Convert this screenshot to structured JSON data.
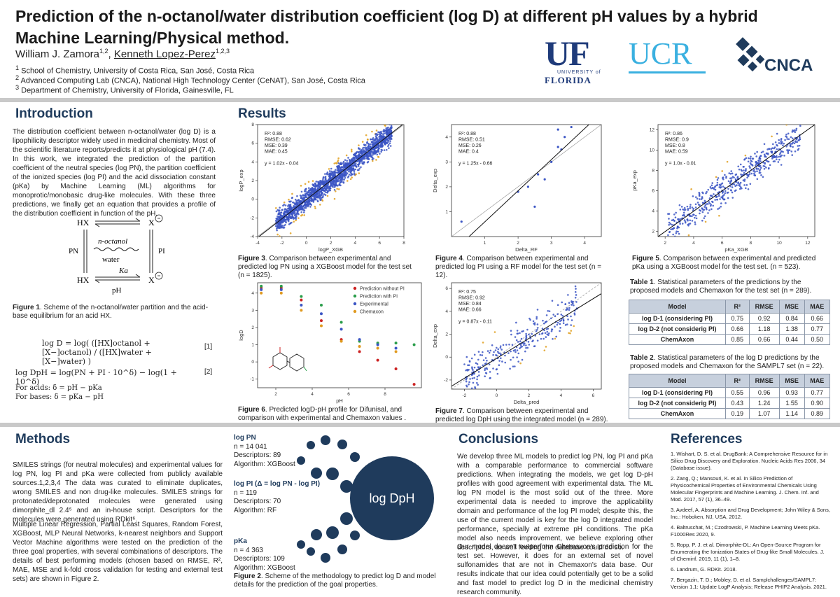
{
  "poster": {
    "title_line1": "Prediction of the n-octanol/water distribution coefficient (log D) at different pH values by a hybrid",
    "title_line2": "Machine Learning/Physical method.",
    "author1": "William J. Zamora",
    "author1_sup": "1,2",
    "author2": "Kenneth Lopez-Perez",
    "author2_sup": "1,2,3",
    "affiliations": [
      "School of Chemistry, University of Costa Rica, San José, Costa Rica",
      "Advanced Computing Lab (CNCA), National High Technology Center (CeNAT), San José, Costa Rica",
      "Department of Chemistry, University of Florida, Gainesville, FL"
    ],
    "affiliation_nums": [
      "1",
      "2",
      "3"
    ]
  },
  "logos": {
    "uf_big": "UF",
    "uf_small1": "UNIVERSITY of",
    "uf_small2": "FLORIDA",
    "ucr": "UCR",
    "cnca": "CNCA",
    "uf_color": "#1f3b7a",
    "ucr_color": "#3ab0e0"
  },
  "introduction": {
    "heading": "Introduction",
    "text": "The distribution coefficient between n-octanol/water (log D) is a lipophilicity descriptor widely used in medicinal chemistry. Most of the scientific literature reports/predicts it at physiological pH (7.4). In this work, we integrated the prediction of the partition coefficient of the neutral species (log PN), the partition coefficient of the ionized species (log PI) and the acid dissociation constant (pKa) by Machine Learning (ML) algorithms for monoprotic/monobasic drug-like molecules. With these three predictions, we finally get an equation that provides a profile of the distribution coefficient in function of the pH.",
    "scheme": {
      "hx_top": "HX",
      "x_top": "X",
      "octanol": "n-octanol",
      "water": "water",
      "pn": "PN",
      "pi": "PI",
      "ka": "Ka",
      "hx_bottom": "HX",
      "x_bottom": "X",
      "ph": "pH"
    },
    "fig1_caption_bold": "Figure 1",
    "fig1_caption": ". Scheme of the n-octanol/water partition and the acid-base equilibrium for an acid HX.",
    "eq1": "log D = log( ([HX]octanol + [X−]octanol) / ([HX]water + [X−]water) )",
    "eq1_num": "[1]",
    "eq2": "log DpH = log(PN + PI · 10^δ) − log(1 + 10^δ)",
    "eq2_num": "[2]",
    "acids": "For acids:   δ = pH − pKa",
    "bases": "For bases:   δ = pKa − pH"
  },
  "results": {
    "heading": "Results",
    "fig3_caption_bold": "Figure 3",
    "fig3_caption": ". Comparison between experimental and predicted log PN using a XGBoost model for the test set (n = 1825).",
    "fig4_caption_bold": "Figure 4",
    "fig4_caption": ". Comparison between experimental and predicted log PI using a RF model for the test set (n = 12).",
    "fig5_caption_bold": "Figure 5",
    "fig5_caption": ". Comparison between experimental and predicted pKa using a XGBoost model for the test set. (n = 523).",
    "fig6_caption_bold": "Figure 6",
    "fig6_caption": ". Predicted logD-pH profile for Difunisal, and comparison with experimental and Chemaxon values .",
    "fig7_caption_bold": "Figure 7",
    "fig7_caption": ". Comparison between experimental and predicted log DpH using the integrated model (n = 289).",
    "table1_caption_bold": "Table 1",
    "table1_caption": ". Statistical parameters of the predictions by the proposed models and Chemaxon for the test set (n = 289).",
    "table2_caption_bold": "Table 2",
    "table2_caption": ". Statistical parameters of the log D predictions by the proposed models and Chemaxon for the SAMPL7 set (n = 22).",
    "table_headers": [
      "Model",
      "R²",
      "RMSE",
      "MSE",
      "MAE"
    ],
    "table1_rows": [
      [
        "log D-1  (considering PI)",
        "0.75",
        "0.92",
        "0.84",
        "0.66"
      ],
      [
        "log D-2  (not considerig PI)",
        "0.66",
        "1.18",
        "1.38",
        "0.77"
      ],
      [
        "ChemAxon",
        "0.85",
        "0.66",
        "0.44",
        "0.50"
      ]
    ],
    "table2_rows": [
      [
        "log D-1  (considering PI)",
        "0.55",
        "0.96",
        "0.93",
        "0.77"
      ],
      [
        "log D-2  (not considerig PI)",
        "0.43",
        "1.24",
        "1.55",
        "0.90"
      ],
      [
        "ChemAxon",
        "0.19",
        "1.07",
        "1.14",
        "0.89"
      ]
    ]
  },
  "methods": {
    "heading": "Methods",
    "para1": "SMILES strings (for neutral molecules) and experimental values for log PN, log PI and pKa were collected from publicly available sources.1,2,3,4 The data was curated to eliminate duplicates, wrong SMILES and non drug-like molecules. SMILES strings for protonated/deprotonated molecules were generated using dimorphite_dl 2.4⁵ and an in-house script. Descriptors for the molecules were generated using RDkit⁶.",
    "para2": "Multiple Linear Regression, Partial Least Squares, Random Forest, XGBoost, MLP Neural Networks, k-nearest neighbors and Support Vector Machine algorithms were tested on the prediction of the three goal properties, with several combinations of descriptors. The details of best performing models (chosen based on RMSE, R², MAE, MSE and k-fold cross validation for testing and external test sets) are shown in Figure 2.",
    "pn_title": "log PN",
    "pn_lines": [
      "n = 14 041",
      "Descriptors: 89",
      "Algorithm: XGBoost"
    ],
    "pi_title": "log PI (Δ = log PN - log PI)",
    "pi_lines": [
      "n = 119",
      "Descriptors: 70",
      "Algorithm: RF"
    ],
    "pka_title": "pKa",
    "pka_lines": [
      "n = 4 363",
      "Descriptors: 109",
      "Algorithm: XGBoost"
    ],
    "circle_label": "log DpH",
    "fig2_caption_bold": "Figure 2",
    "fig2_caption": ". Scheme of the methodology to predict log D and model details for the prediction of the goal properties."
  },
  "conclusions": {
    "heading": "Conclusions",
    "para1": "We develop three ML models to predict log PN, log PI and pKa with a comparable performance to commercial software predictions. When integrating the models, we get log D-pH profiles with good agreement with experimental data. The ML log PN model is the most solid out of the three. More experimental data is needed to improve the applicability domain and performance of the log PI model; despite this, the use of the current model is key for the log D integrated model performance, specially at extreme pH conditions. The pKa model also needs improvement, we believe exploring other descriptors, as well feeding the database could do so.",
    "para2": "Our model doesn't outperform Chemaxon's prediction for the test set. However, it does for an external set of novel sulfonamides that are not in Chemaxon's data base. Our results indicate that our idea could potentially get to be a solid and fast model to predict log D in the medicinal chemistry research community."
  },
  "references": {
    "heading": "References",
    "items": [
      "1.  Wishart, D. S. et al. DrugBank: A Comprehensive Resource for in Silico Drug Discovery and Exploration. Nucleic Acids Res 2006, 34 (Database issue).",
      "2.  Zang, Q.; Mansouri, K. et al. In Silico Prediction of Physicochemical Properties of Environmental Chemicals Using Molecular Fingerprints and Machine Learning. J. Chem. Inf. and Mod. 2017, 57 (1), 36–49.",
      "3.  Avdeef, A. Absorption and Drug Development; John Wiley & Sons, Inc.: Hoboken, NJ, USA, 2012.",
      "4.  Baltruschat, M.; Czodrowski, P. Machine Learning Meets pKa. F1000Res 2020, 9.",
      "5.  Ropp, P. J. et al. Dimorphite-DL: An Open-Source Program for Enumerating the Ionization States of Drug-like Small Molecules. J. of Cheminf. 2019, 11 (1), 1–8.",
      "6.  Landrum, G. RDKit. 2018.",
      "7.  Bergazin, T. D.; Mobley, D. et al. Samplchallenges/SAMPL7: Version 1.1: Update LogP Analysis; Release PHIP2 Analysis. 2021."
    ]
  },
  "chart_data": [
    {
      "type": "scatter",
      "id": "fig3",
      "xlabel": "logP_XGB",
      "ylabel": "logP_exp",
      "xlim": [
        -4,
        8
      ],
      "ylim": [
        -4,
        8
      ],
      "xticks": [
        -4,
        -2,
        0,
        2,
        4,
        6,
        8
      ],
      "yticks": [
        -4,
        -2,
        0,
        2,
        4,
        6,
        8
      ],
      "annotation": [
        "R²: 0.88",
        "RMSE: 0.62",
        "MSE: 0.39",
        "MAE: 0.45",
        "",
        "y = 1.02x - 0.04"
      ],
      "fit": {
        "slope": 1.02,
        "intercept": -0.04
      },
      "n": 1825,
      "spread": 0.6,
      "xrange": [
        -2.5,
        7
      ]
    },
    {
      "type": "scatter",
      "id": "fig4",
      "xlabel": "Delta_RF",
      "ylabel": "Delta_exp",
      "xlim": [
        0,
        4.5
      ],
      "ylim": [
        0,
        4.5
      ],
      "xticks": [
        1,
        2,
        3,
        4
      ],
      "yticks": [
        1,
        2,
        3,
        4
      ],
      "annotation": [
        "R²: 0.88",
        "RMSE: 0.51",
        "MSE: 0.26",
        "MAE: 0.4",
        "",
        "y = 1.25x - 0.66"
      ],
      "fit": {
        "slope": 1.25,
        "intercept": -0.66
      },
      "points": [
        [
          0.3,
          0.6
        ],
        [
          2.0,
          1.8
        ],
        [
          2.3,
          2.0
        ],
        [
          2.6,
          2.5
        ],
        [
          2.5,
          1.2
        ],
        [
          3.0,
          3.0
        ],
        [
          3.2,
          3.6
        ],
        [
          3.3,
          3.5
        ],
        [
          3.4,
          4.0
        ],
        [
          3.2,
          4.3
        ],
        [
          3.6,
          4.4
        ],
        [
          2.8,
          2.3
        ]
      ]
    },
    {
      "type": "scatter",
      "id": "fig5",
      "xlabel": "pKa_XGB",
      "ylabel": "pKa_exp",
      "xlim": [
        1.5,
        12.5
      ],
      "ylim": [
        1.5,
        12.5
      ],
      "xticks": [
        2,
        4,
        6,
        8,
        10,
        12
      ],
      "yticks": [
        2,
        4,
        6,
        8,
        10,
        12
      ],
      "annotation": [
        "R²: 0.86",
        "RMSE: 0.9",
        "MSE: 0.8",
        "MAE: 0.59",
        "",
        "y = 1.0x - 0.01"
      ],
      "fit": {
        "slope": 1.0,
        "intercept": -0.01
      },
      "n": 523,
      "spread": 0.8,
      "xrange": [
        2.2,
        11.5
      ]
    },
    {
      "type": "scatter",
      "id": "fig6",
      "xlabel": "pH",
      "ylabel": "logD",
      "xlim": [
        1,
        10
      ],
      "ylim": [
        -1.5,
        4.6
      ],
      "xticks": [
        2,
        4,
        6,
        8
      ],
      "yticks": [
        -1,
        0,
        1,
        2,
        3,
        4
      ],
      "legend": "top-right",
      "series": [
        {
          "name": "Prediction without PI",
          "color": "#cc2222",
          "x": [
            1.2,
            2.3,
            3.4,
            4.5,
            5.6,
            6.6,
            7.6,
            8.6,
            9.6
          ],
          "y": [
            4.3,
            4.3,
            3.6,
            2.4,
            1.3,
            0.6,
            0.1,
            -0.4,
            -1.3
          ]
        },
        {
          "name": "Prediction with PI",
          "color": "#2a9d4a",
          "x": [
            1.2,
            2.3,
            3.4,
            4.5,
            5.6,
            6.6,
            7.6,
            8.6,
            9.6
          ],
          "y": [
            4.4,
            4.4,
            3.8,
            3.3,
            2.3,
            1.2,
            1.1,
            1.1,
            1.0
          ]
        },
        {
          "name": "Experimental",
          "color": "#3b55c4",
          "x": [
            1.2,
            2.3,
            3.4,
            4.5,
            5.6,
            6.6,
            7.6,
            8.6
          ],
          "y": [
            4.2,
            4.2,
            3.3,
            2.8,
            1.9,
            1.3,
            1.0,
            0.8
          ]
        },
        {
          "name": "Chemaxon",
          "color": "#e09a20",
          "x": [
            1.2,
            2.3,
            3.4,
            4.5,
            5.6,
            6.6,
            7.6,
            8.6
          ],
          "y": [
            4.0,
            4.0,
            3.0,
            2.1,
            1.2,
            0.9,
            0.8,
            0.6
          ]
        }
      ]
    },
    {
      "type": "scatter",
      "id": "fig7",
      "xlabel": "Delta_pred",
      "ylabel": "Delta_exp",
      "xlim": [
        -2.8,
        6.5
      ],
      "ylim": [
        -2.8,
        6.5
      ],
      "xticks": [
        -2,
        0,
        2,
        4,
        6
      ],
      "yticks": [
        -2,
        0,
        2,
        4,
        6
      ],
      "annotation": [
        "R²: 0.75",
        "RMSE: 0.92",
        "MSE: 0.84",
        "MAE: 0.66",
        "",
        "y = 0.87x - 0.11"
      ],
      "fit": {
        "slope": 0.87,
        "intercept": -0.11
      },
      "n": 289,
      "spread": 0.9,
      "xrange": [
        -2,
        5
      ]
    }
  ]
}
